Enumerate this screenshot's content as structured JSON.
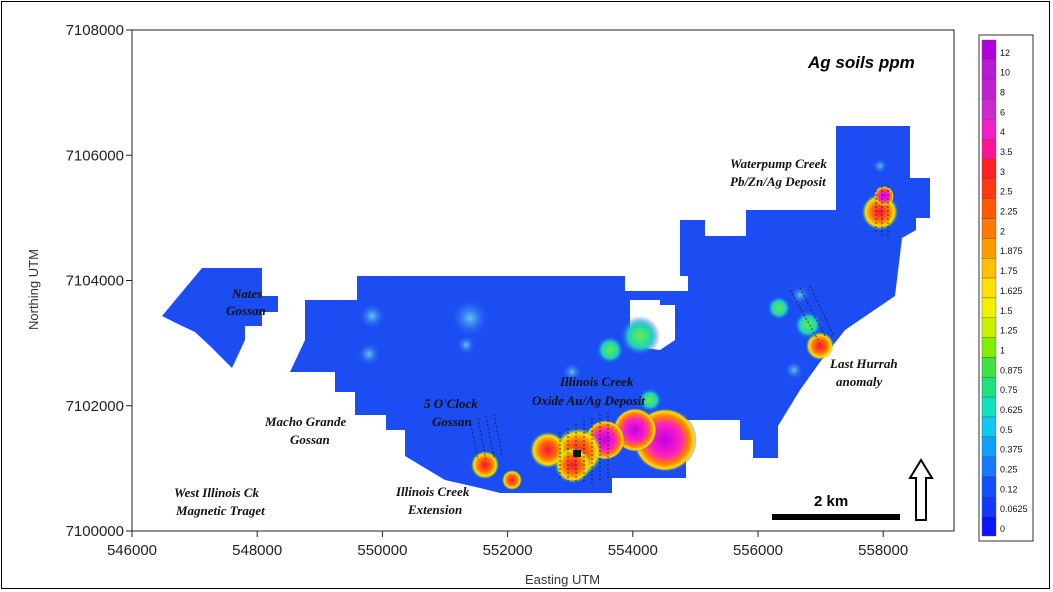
{
  "map": {
    "title": "Ag soils ppm",
    "x_axis_title": "Easting UTM",
    "y_axis_title": "Northing UTM",
    "x_ticks": [
      "546000",
      "548000",
      "550000",
      "552000",
      "554000",
      "556000",
      "558000"
    ],
    "y_ticks": [
      "7100000",
      "7102000",
      "7104000",
      "7106000",
      "7108000"
    ],
    "scale_bar_label": "2 km",
    "labels": {
      "nates": [
        "Nates",
        "Gossan"
      ],
      "macho": [
        "Macho Grande",
        "Gossan"
      ],
      "five_oclock": [
        "5 O'Clock",
        "Gossan"
      ],
      "illinois_deposit": [
        "Illinois Creek",
        "Oxide Au/Ag Deposit"
      ],
      "waterpump": [
        "Waterpump Creek",
        "Pb/Zn/Ag Deposit"
      ],
      "last_hurrah": [
        "Last Hurrah",
        "anomaly"
      ],
      "west_illinois": [
        "West Illinois Ck",
        "Magnetic Traget"
      ],
      "illinois_ext": [
        "Illinois Creek",
        "Extension"
      ]
    }
  },
  "legend": {
    "levels": [
      "12",
      "10",
      "8",
      "6",
      "4",
      "3.5",
      "3",
      "2.5",
      "2.25",
      "2",
      "1.875",
      "1.75",
      "1.625",
      "1.5",
      "1.25",
      "1",
      "0.875",
      "0.75",
      "0.625",
      "0.5",
      "0.375",
      "0.25",
      "0.12",
      "0.0625",
      "0"
    ],
    "colors": [
      "#b000e0",
      "#b818d8",
      "#c020d0",
      "#d028d0",
      "#f020c8",
      "#ff1493",
      "#ff2020",
      "#ff3a10",
      "#ff5a00",
      "#ff7a00",
      "#ff9a00",
      "#ffc000",
      "#ffe000",
      "#f0f000",
      "#c8f000",
      "#80f000",
      "#40e040",
      "#20e080",
      "#10e0c0",
      "#10c8f0",
      "#10a0ff",
      "#1878ff",
      "#1050ff",
      "#1038ff",
      "#0a14ff"
    ]
  },
  "colors": {
    "base_fill": "#1b4df2",
    "background": "#ffffff"
  },
  "icons": {
    "north_arrow": "north-arrow-icon"
  }
}
